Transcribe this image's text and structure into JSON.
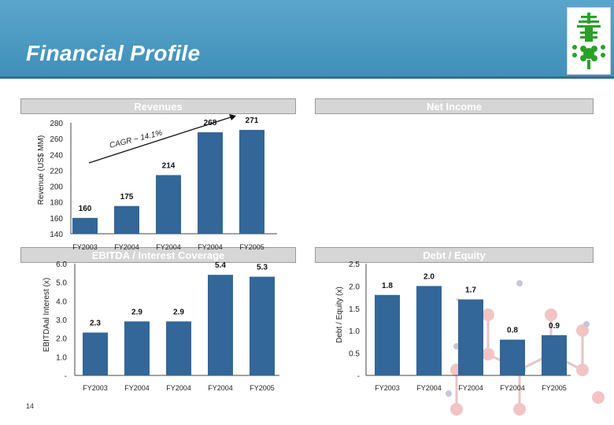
{
  "page": {
    "title": "Financial Profile",
    "page_number": "14"
  },
  "panels": {
    "revenues_title": "Revenues",
    "net_income_title": "Net Income",
    "ebitda_title": "EBITDA / Interest Coverage",
    "debt_title": "Debt / Equity"
  },
  "colors": {
    "bar": "#336699",
    "header": "#4a97c2"
  },
  "chart_data": [
    {
      "id": "revenues",
      "type": "bar",
      "title": "Revenues",
      "ylabel": "Revenue (US$ MM)",
      "categories": [
        "FY2003",
        "FY2004",
        "FY2004",
        "FY2004",
        "FY2005"
      ],
      "values": [
        160,
        175,
        214,
        268,
        271
      ],
      "value_labels": [
        "160",
        "175",
        "214",
        "268",
        "271"
      ],
      "ylim": [
        140,
        280
      ],
      "yticks": [
        "140",
        "160",
        "180",
        "200",
        "220",
        "240",
        "260",
        "280"
      ],
      "annotation": "CAGR ~ 14.1%"
    },
    {
      "id": "ebitda",
      "type": "bar",
      "title": "EBITDA / Interest Coverage",
      "ylabel": "EBITDAal Interest (x)",
      "categories": [
        "FY2003",
        "FY2004",
        "FY2004",
        "FY2004",
        "FY2005"
      ],
      "values": [
        2.3,
        2.9,
        2.9,
        5.4,
        5.3
      ],
      "value_labels": [
        "2.3",
        "2.9",
        "2.9",
        "5.4",
        "5.3"
      ],
      "ylim": [
        0,
        6
      ],
      "yticks": [
        "-",
        "1.0",
        "2.0",
        "3.0",
        "4.0",
        "5.0",
        "6.0"
      ]
    },
    {
      "id": "debt",
      "type": "bar",
      "title": "Debt / Equity",
      "ylabel": "Debt / Equity (x)",
      "categories": [
        "FY2003",
        "FY2004",
        "FY2004",
        "FY2004",
        "FY2005"
      ],
      "values": [
        1.8,
        2.0,
        1.7,
        0.8,
        0.9
      ],
      "value_labels": [
        "1.8",
        "2.0",
        "1.7",
        "0.8",
        "0.9"
      ],
      "ylim": [
        0,
        2.5
      ],
      "yticks": [
        "-",
        "0.5",
        "1.0",
        "1.5",
        "2.0",
        "2.5"
      ]
    }
  ]
}
